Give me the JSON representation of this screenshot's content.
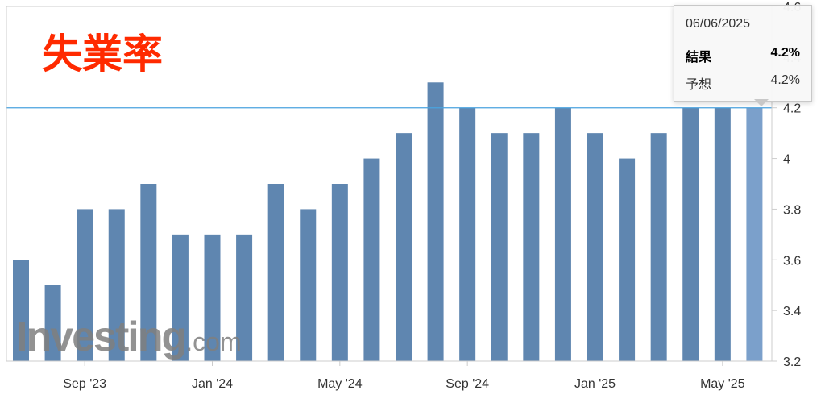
{
  "chart_data": {
    "type": "bar",
    "title": "失業率",
    "categories": [
      "2023-07",
      "2023-08",
      "2023-09",
      "2023-10",
      "2023-11",
      "2023-12",
      "2024-01",
      "2024-02",
      "2024-03",
      "2024-04",
      "2024-05",
      "2024-06",
      "2024-07",
      "2024-08",
      "2024-09",
      "2024-10",
      "2024-11",
      "2024-12",
      "2025-01",
      "2025-02",
      "2025-03",
      "2025-04",
      "2025-05",
      "2025-06"
    ],
    "values": [
      3.6,
      3.5,
      3.8,
      3.8,
      3.9,
      3.7,
      3.7,
      3.7,
      3.9,
      3.8,
      3.9,
      4.0,
      4.1,
      4.3,
      4.2,
      4.1,
      4.1,
      4.2,
      4.1,
      4.0,
      4.1,
      4.2,
      4.2,
      4.2
    ],
    "highlighted_index": 23,
    "ylim": [
      3.2,
      4.6
    ],
    "yticks": [
      "3.2",
      "3.4",
      "3.6",
      "3.8",
      "4",
      "4.2",
      "4.4",
      "4.6"
    ],
    "xticks": [
      {
        "index": 2,
        "label": "Sep '23"
      },
      {
        "index": 6,
        "label": "Jan '24"
      },
      {
        "index": 10,
        "label": "May '24"
      },
      {
        "index": 14,
        "label": "Sep '24"
      },
      {
        "index": 18,
        "label": "Jan '25"
      },
      {
        "index": 22,
        "label": "May '25"
      }
    ],
    "reference_line": 4.2,
    "bar_color": "#5f86b0",
    "highlight_color": "#7ba0cb",
    "reference_line_color": "#4aa3df",
    "grid": false,
    "y_axis_side": "right"
  },
  "tooltip": {
    "date": "06/06/2025",
    "actual_label": "結果",
    "actual_value": "4.2%",
    "forecast_label": "予想",
    "forecast_value": "4.2%"
  },
  "watermark": {
    "main": "Investing",
    "domain": ".com"
  }
}
